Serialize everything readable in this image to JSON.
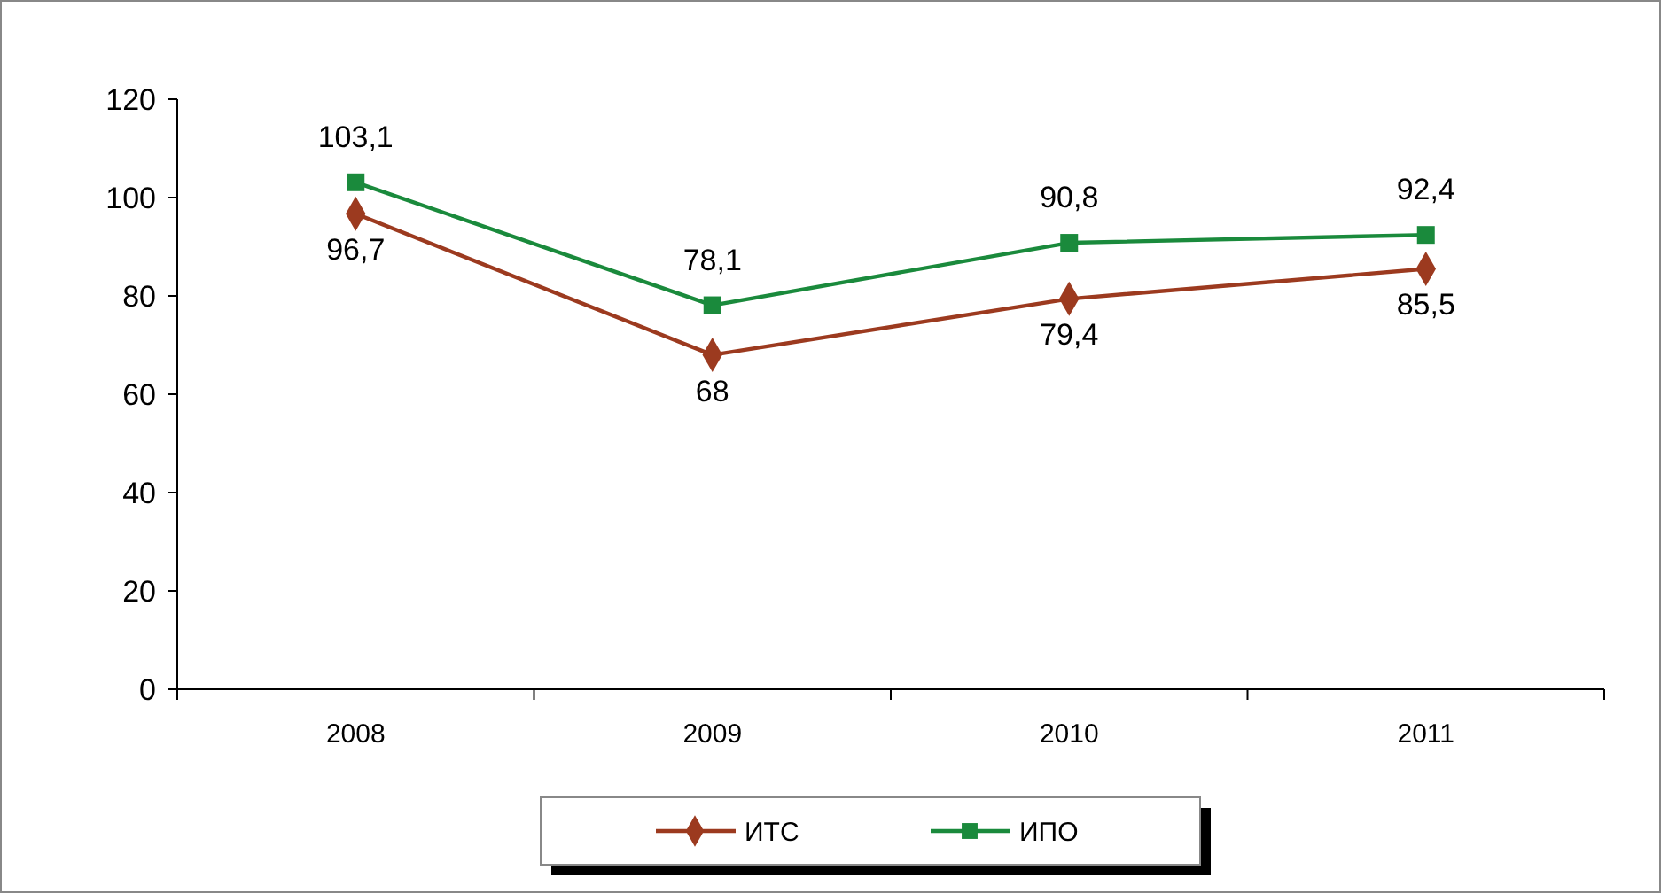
{
  "chart_data": {
    "type": "line",
    "categories": [
      "2008",
      "2009",
      "2010",
      "2011"
    ],
    "series": [
      {
        "name": "ИТС",
        "color": "#9c3a1f",
        "marker": "diamond",
        "values": [
          96.7,
          68,
          79.4,
          85.5
        ],
        "value_labels": [
          "96,7",
          "68",
          "79,4",
          "85,5"
        ]
      },
      {
        "name": "ИПО",
        "color": "#1a8a3c",
        "marker": "square",
        "values": [
          103.1,
          78.1,
          90.8,
          92.4
        ],
        "value_labels": [
          "103,1",
          "78,1",
          "90,8",
          "92,4"
        ]
      }
    ],
    "ylim": [
      0,
      120
    ],
    "yticks": [
      0,
      20,
      40,
      60,
      80,
      100,
      120
    ],
    "grid": false,
    "legend": "bottom"
  }
}
